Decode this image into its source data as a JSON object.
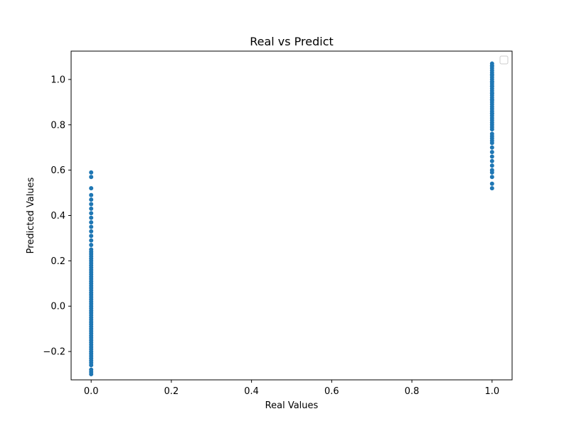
{
  "chart_data": {
    "type": "scatter",
    "title": "Real vs Predict",
    "xlabel": "Real Values",
    "ylabel": "Predicted Values",
    "xlim": [
      -0.05,
      1.05
    ],
    "ylim": [
      -0.325,
      1.125
    ],
    "xticks": [
      0.0,
      0.2,
      0.4,
      0.6,
      0.8,
      1.0
    ],
    "xtick_labels": [
      "0.0",
      "0.2",
      "0.4",
      "0.6",
      "0.8",
      "1.0"
    ],
    "yticks": [
      -0.2,
      0.0,
      0.2,
      0.4,
      0.6,
      0.8,
      1.0
    ],
    "ytick_labels": [
      "−0.2",
      "0.0",
      "0.2",
      "0.4",
      "0.6",
      "0.8",
      "1.0"
    ],
    "grid": false,
    "legend": "top-right (empty)",
    "color": "#1f77b4",
    "series": [
      {
        "x": [
          0,
          0,
          0,
          0,
          0,
          0,
          0,
          0,
          0,
          0,
          0,
          0,
          0,
          0,
          0,
          0,
          0,
          0,
          0,
          0,
          0,
          0,
          0,
          0,
          0,
          0,
          0,
          0,
          0,
          0,
          0,
          0,
          0,
          0,
          0,
          0,
          0,
          0,
          0,
          0,
          0,
          0,
          0,
          0,
          0,
          0,
          0,
          0,
          0,
          0,
          0,
          0,
          0,
          0,
          0,
          0,
          0,
          0,
          0,
          0,
          0,
          0,
          0,
          0,
          0,
          0,
          0,
          0,
          0,
          0,
          1,
          1,
          1,
          1,
          1,
          1,
          1,
          1,
          1,
          1,
          1,
          1,
          1,
          1,
          1,
          1,
          1,
          1,
          1,
          1,
          1,
          1,
          1,
          1,
          1,
          1,
          1,
          1,
          1,
          1,
          1,
          1,
          1,
          1,
          1,
          1,
          1,
          1,
          1,
          1,
          1,
          1,
          1,
          1,
          1,
          1,
          1,
          1,
          1,
          1,
          1,
          1
        ],
        "y": [
          -0.3,
          -0.29,
          -0.28,
          -0.26,
          -0.25,
          -0.24,
          -0.23,
          -0.22,
          -0.21,
          -0.2,
          -0.19,
          -0.18,
          -0.17,
          -0.16,
          -0.15,
          -0.14,
          -0.13,
          -0.12,
          -0.11,
          -0.1,
          -0.09,
          -0.08,
          -0.07,
          -0.06,
          -0.05,
          -0.04,
          -0.03,
          -0.02,
          -0.01,
          0.0,
          0.01,
          0.02,
          0.03,
          0.04,
          0.05,
          0.06,
          0.07,
          0.08,
          0.09,
          0.1,
          0.11,
          0.12,
          0.13,
          0.14,
          0.15,
          0.16,
          0.17,
          0.18,
          0.19,
          0.2,
          0.21,
          0.22,
          0.23,
          0.24,
          0.25,
          0.27,
          0.29,
          0.31,
          0.33,
          0.35,
          0.37,
          0.39,
          0.41,
          0.43,
          0.45,
          0.47,
          0.49,
          0.52,
          0.57,
          0.59,
          0.52,
          0.54,
          0.57,
          0.59,
          0.6,
          0.62,
          0.64,
          0.66,
          0.68,
          0.7,
          0.72,
          0.74,
          0.75,
          0.76,
          0.78,
          0.8,
          0.81,
          0.82,
          0.83,
          0.84,
          0.85,
          0.86,
          0.87,
          0.88,
          0.89,
          0.9,
          0.91,
          0.92,
          0.93,
          0.94,
          0.95,
          0.96,
          0.97,
          0.98,
          0.99,
          1.0,
          1.01,
          1.02,
          1.03,
          1.04,
          1.05,
          1.06,
          1.07,
          0.73,
          0.79,
          0.85,
          0.91,
          0.97,
          1.02,
          1.06,
          0.94,
          0.99
        ]
      }
    ]
  }
}
